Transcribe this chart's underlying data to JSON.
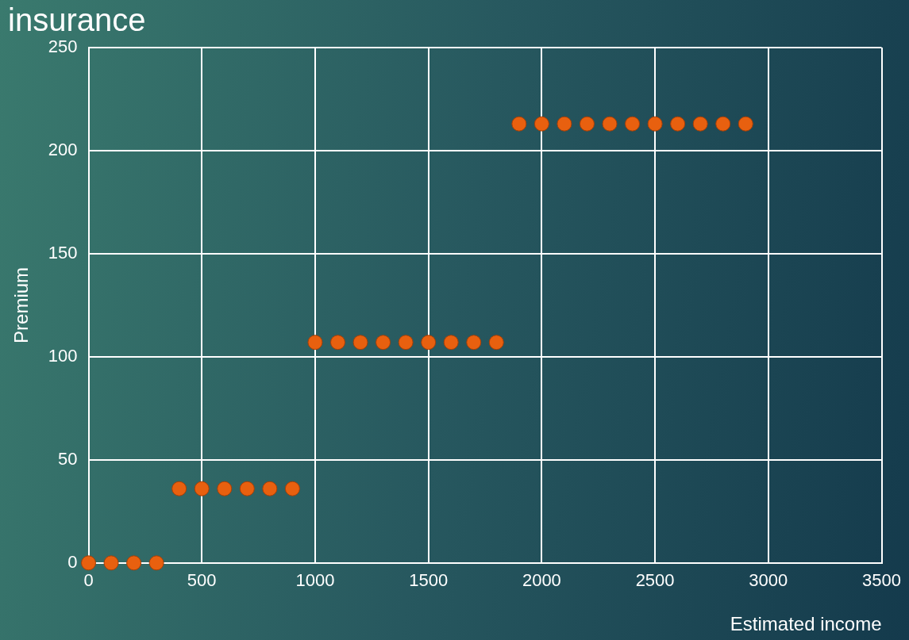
{
  "chart_data": {
    "type": "scatter",
    "title": "insurance",
    "xlabel": "Estimated income",
    "ylabel": "Premium",
    "series": [
      {
        "color": "#e8600f",
        "x": [
          0,
          100,
          200,
          300,
          400,
          500,
          600,
          700,
          800,
          900,
          1000,
          1100,
          1200,
          1300,
          1400,
          1500,
          1600,
          1700,
          1800,
          1900,
          2000,
          2100,
          2200,
          2300,
          2400,
          2500,
          2600,
          2700,
          2800,
          2900
        ],
        "values": [
          0,
          0,
          0,
          0,
          36,
          36,
          36,
          36,
          36,
          36,
          107,
          107,
          107,
          107,
          107,
          107,
          107,
          107,
          107,
          213,
          213,
          213,
          213,
          213,
          213,
          213,
          213,
          213,
          213,
          213
        ]
      }
    ],
    "xlim": [
      0,
      3500
    ],
    "xticks": [
      0,
      500,
      1000,
      1500,
      2000,
      2500,
      3000,
      3500
    ],
    "ylim": [
      0,
      250
    ],
    "yticks": [
      0,
      50,
      100,
      150,
      200,
      250
    ],
    "grid": true,
    "marker": "circle",
    "legend": false
  }
}
